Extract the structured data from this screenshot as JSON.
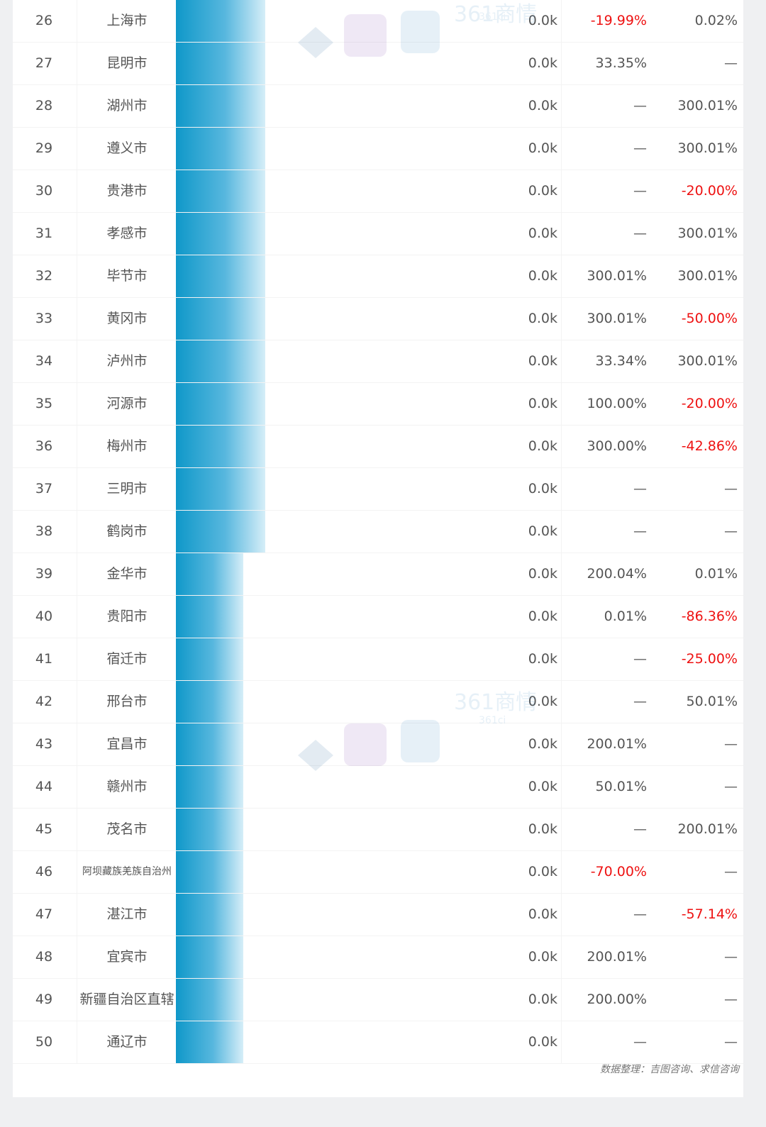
{
  "chart_data": {
    "type": "table",
    "bar_max": 0.0,
    "rows": [
      {
        "rank": "26",
        "city": "上海市",
        "value": "0.0k",
        "change_1": "-19.99%",
        "change_2": "0.02%",
        "bar_level": 1.0
      },
      {
        "rank": "27",
        "city": "昆明市",
        "value": "0.0k",
        "change_1": "33.35%",
        "change_2": "—",
        "bar_level": 1.0
      },
      {
        "rank": "28",
        "city": "湖州市",
        "value": "0.0k",
        "change_1": "—",
        "change_2": "300.01%",
        "bar_level": 1.0
      },
      {
        "rank": "29",
        "city": "遵义市",
        "value": "0.0k",
        "change_1": "—",
        "change_2": "300.01%",
        "bar_level": 1.0
      },
      {
        "rank": "30",
        "city": "贵港市",
        "value": "0.0k",
        "change_1": "—",
        "change_2": "-20.00%",
        "bar_level": 1.0
      },
      {
        "rank": "31",
        "city": "孝感市",
        "value": "0.0k",
        "change_1": "—",
        "change_2": "300.01%",
        "bar_level": 1.0
      },
      {
        "rank": "32",
        "city": "毕节市",
        "value": "0.0k",
        "change_1": "300.01%",
        "change_2": "300.01%",
        "bar_level": 1.0
      },
      {
        "rank": "33",
        "city": "黄冈市",
        "value": "0.0k",
        "change_1": "300.01%",
        "change_2": "-50.00%",
        "bar_level": 1.0
      },
      {
        "rank": "34",
        "city": "泸州市",
        "value": "0.0k",
        "change_1": "33.34%",
        "change_2": "300.01%",
        "bar_level": 1.0
      },
      {
        "rank": "35",
        "city": "河源市",
        "value": "0.0k",
        "change_1": "100.00%",
        "change_2": "-20.00%",
        "bar_level": 1.0
      },
      {
        "rank": "36",
        "city": "梅州市",
        "value": "0.0k",
        "change_1": "300.00%",
        "change_2": "-42.86%",
        "bar_level": 1.0
      },
      {
        "rank": "37",
        "city": "三明市",
        "value": "0.0k",
        "change_1": "—",
        "change_2": "—",
        "bar_level": 1.0
      },
      {
        "rank": "38",
        "city": "鹤岗市",
        "value": "0.0k",
        "change_1": "—",
        "change_2": "—",
        "bar_level": 1.0
      },
      {
        "rank": "39",
        "city": "金华市",
        "value": "0.0k",
        "change_1": "200.04%",
        "change_2": "0.01%",
        "bar_level": 0.75
      },
      {
        "rank": "40",
        "city": "贵阳市",
        "value": "0.0k",
        "change_1": "0.01%",
        "change_2": "-86.36%",
        "bar_level": 0.75
      },
      {
        "rank": "41",
        "city": "宿迁市",
        "value": "0.0k",
        "change_1": "—",
        "change_2": "-25.00%",
        "bar_level": 0.75
      },
      {
        "rank": "42",
        "city": "邢台市",
        "value": "0.0k",
        "change_1": "—",
        "change_2": "50.01%",
        "bar_level": 0.75
      },
      {
        "rank": "43",
        "city": "宜昌市",
        "value": "0.0k",
        "change_1": "200.01%",
        "change_2": "—",
        "bar_level": 0.75
      },
      {
        "rank": "44",
        "city": "赣州市",
        "value": "0.0k",
        "change_1": "50.01%",
        "change_2": "—",
        "bar_level": 0.75
      },
      {
        "rank": "45",
        "city": "茂名市",
        "value": "0.0k",
        "change_1": "—",
        "change_2": "200.01%",
        "bar_level": 0.75
      },
      {
        "rank": "46",
        "city": "阿坝藏族羌族自治州",
        "value": "0.0k",
        "change_1": "-70.00%",
        "change_2": "—",
        "bar_level": 0.75
      },
      {
        "rank": "47",
        "city": "湛江市",
        "value": "0.0k",
        "change_1": "—",
        "change_2": "-57.14%",
        "bar_level": 0.75
      },
      {
        "rank": "48",
        "city": "宜宾市",
        "value": "0.0k",
        "change_1": "200.01%",
        "change_2": "—",
        "bar_level": 0.75
      },
      {
        "rank": "49",
        "city": "新疆自治区直辖",
        "value": "0.0k",
        "change_1": "200.00%",
        "change_2": "—",
        "bar_level": 0.75
      },
      {
        "rank": "50",
        "city": "通辽市",
        "value": "0.0k",
        "change_1": "—",
        "change_2": "—",
        "bar_level": 0.75
      }
    ]
  },
  "source": "数据整理：吉图咨询、求信咨询",
  "colors": {
    "negative": "#ee1111",
    "bar_start": "#0f98c9",
    "bar_end": "#d6eef8"
  },
  "watermark": {
    "brand": "361商情",
    "sub": "361ci"
  }
}
